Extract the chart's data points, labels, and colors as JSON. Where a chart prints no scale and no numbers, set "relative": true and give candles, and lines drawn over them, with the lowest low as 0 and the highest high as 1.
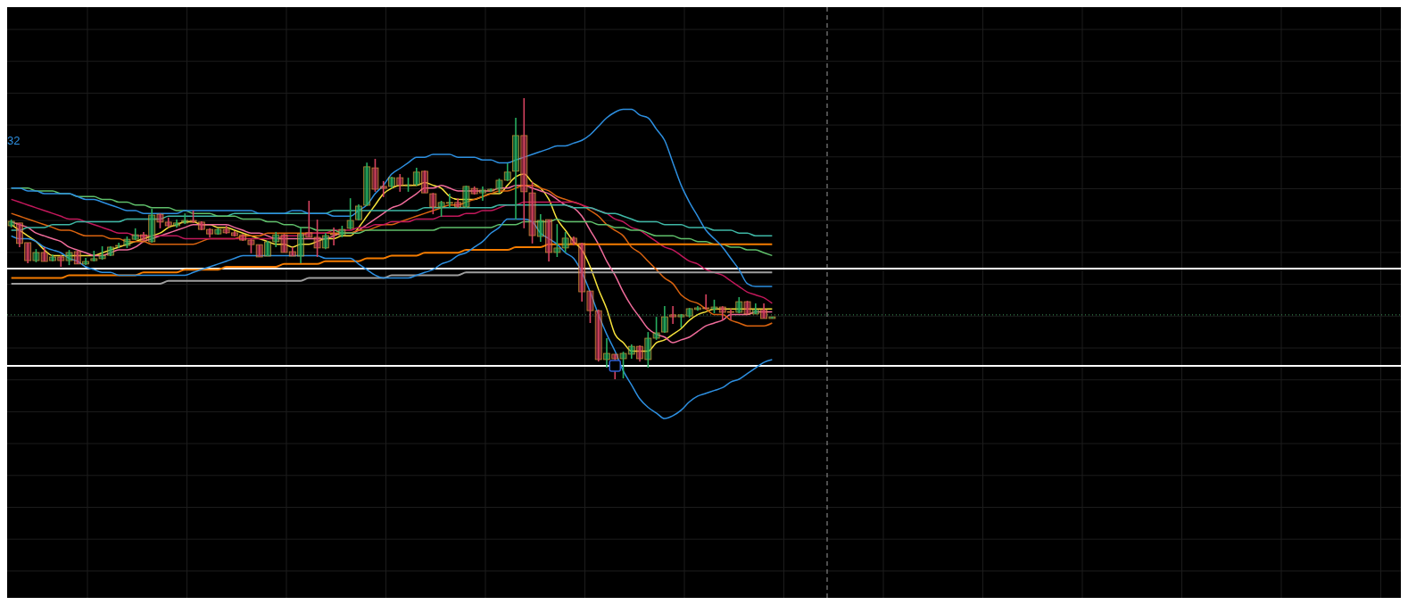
{
  "chart_data": {
    "type": "candlestick",
    "relative": true,
    "grid": true,
    "categories": [
      null,
      null,
      null,
      null,
      null,
      null,
      null,
      null,
      null,
      null,
      null,
      null,
      null,
      null,
      null,
      null,
      null,
      null,
      null,
      null,
      null,
      null,
      null,
      null,
      null,
      null,
      null,
      null,
      null,
      null,
      null,
      null,
      null,
      null,
      null,
      null,
      null,
      null,
      null,
      null,
      null,
      null,
      null,
      null,
      null,
      null,
      null,
      null,
      null,
      null,
      null,
      null,
      null,
      null,
      null,
      null,
      null,
      null,
      null,
      null,
      null,
      null,
      null,
      null,
      null,
      null,
      null,
      null,
      null,
      null,
      null,
      null,
      null,
      null,
      null,
      null,
      null,
      null,
      null,
      null,
      null,
      null,
      null,
      null,
      null,
      null,
      null,
      null,
      null,
      null,
      null,
      null,
      null
    ],
    "ohlc": [
      [
        0.546,
        0.568,
        0.54,
        0.562
      ],
      [
        0.556,
        0.556,
        0.47,
        0.483
      ],
      [
        0.486,
        0.486,
        0.413,
        0.422
      ],
      [
        0.422,
        0.463,
        0.416,
        0.451
      ],
      [
        0.451,
        0.47,
        0.419,
        0.419
      ],
      [
        0.422,
        0.444,
        0.419,
        0.435
      ],
      [
        0.435,
        0.441,
        0.4,
        0.422
      ],
      [
        0.422,
        0.46,
        0.406,
        0.451
      ],
      [
        0.454,
        0.457,
        0.41,
        0.41
      ],
      [
        0.41,
        0.432,
        0.406,
        0.419
      ],
      [
        0.422,
        0.457,
        0.419,
        0.429
      ],
      [
        0.429,
        0.473,
        0.425,
        0.441
      ],
      [
        0.441,
        0.473,
        0.438,
        0.47
      ],
      [
        0.476,
        0.486,
        0.467,
        0.476
      ],
      [
        0.476,
        0.508,
        0.467,
        0.498
      ],
      [
        0.498,
        0.537,
        0.495,
        0.514
      ],
      [
        0.514,
        0.524,
        0.492,
        0.492
      ],
      [
        0.489,
        0.606,
        0.486,
        0.584
      ],
      [
        0.587,
        0.59,
        0.537,
        0.559
      ],
      [
        0.559,
        0.575,
        0.54,
        0.546
      ],
      [
        0.546,
        0.568,
        0.54,
        0.556
      ],
      [
        0.556,
        0.59,
        0.552,
        0.565
      ],
      [
        0.565,
        0.6,
        0.556,
        0.559
      ],
      [
        0.559,
        0.562,
        0.53,
        0.533
      ],
      [
        0.533,
        0.537,
        0.505,
        0.517
      ],
      [
        0.517,
        0.537,
        0.514,
        0.533
      ],
      [
        0.533,
        0.546,
        0.517,
        0.521
      ],
      [
        0.521,
        0.527,
        0.508,
        0.511
      ],
      [
        0.514,
        0.517,
        0.492,
        0.495
      ],
      [
        0.495,
        0.498,
        0.448,
        0.479
      ],
      [
        0.479,
        0.479,
        0.435,
        0.435
      ],
      [
        0.438,
        0.492,
        0.438,
        0.489
      ],
      [
        0.489,
        0.524,
        0.47,
        0.514
      ],
      [
        0.514,
        0.517,
        0.451,
        0.451
      ],
      [
        0.454,
        0.47,
        0.438,
        0.438
      ],
      [
        0.438,
        0.54,
        0.413,
        0.517
      ],
      [
        0.521,
        0.635,
        0.505,
        0.505
      ],
      [
        0.505,
        0.568,
        0.435,
        0.467
      ],
      [
        0.467,
        0.521,
        0.463,
        0.511
      ],
      [
        0.517,
        0.54,
        0.476,
        0.514
      ],
      [
        0.511,
        0.546,
        0.505,
        0.533
      ],
      [
        0.537,
        0.644,
        0.533,
        0.565
      ],
      [
        0.568,
        0.622,
        0.565,
        0.616
      ],
      [
        0.619,
        0.771,
        0.616,
        0.756
      ],
      [
        0.752,
        0.784,
        0.667,
        0.676
      ],
      [
        0.686,
        0.705,
        0.648,
        0.679
      ],
      [
        0.686,
        0.721,
        0.679,
        0.717
      ],
      [
        0.717,
        0.73,
        0.667,
        0.689
      ],
      [
        0.692,
        0.717,
        0.667,
        0.692
      ],
      [
        0.692,
        0.752,
        0.689,
        0.737
      ],
      [
        0.74,
        0.743,
        0.663,
        0.663
      ],
      [
        0.66,
        0.663,
        0.587,
        0.613
      ],
      [
        0.613,
        0.635,
        0.578,
        0.629
      ],
      [
        0.629,
        0.66,
        0.61,
        0.629
      ],
      [
        0.629,
        0.644,
        0.61,
        0.613
      ],
      [
        0.613,
        0.689,
        0.61,
        0.686
      ],
      [
        0.679,
        0.686,
        0.657,
        0.66
      ],
      [
        0.663,
        0.686,
        0.635,
        0.673
      ],
      [
        0.67,
        0.679,
        0.667,
        0.676
      ],
      [
        0.676,
        0.714,
        0.663,
        0.708
      ],
      [
        0.708,
        0.768,
        0.705,
        0.737
      ],
      [
        0.74,
        0.93,
        0.568,
        0.867
      ],
      [
        0.867,
        1,
        0.537,
        0.667
      ],
      [
        0.663,
        0.702,
        0.483,
        0.511
      ],
      [
        0.508,
        0.587,
        0.489,
        0.565
      ],
      [
        0.568,
        0.568,
        0.419,
        0.451
      ],
      [
        0.451,
        0.552,
        0.435,
        0.467
      ],
      [
        0.467,
        0.524,
        0.451,
        0.502
      ],
      [
        0.502,
        0.508,
        0.476,
        0.483
      ],
      [
        0.483,
        0.486,
        0.276,
        0.311
      ],
      [
        0.314,
        0.314,
        0.2,
        0.244
      ],
      [
        0.244,
        0.248,
        0.063,
        0.07
      ],
      [
        0.07,
        0.146,
        0.041,
        0.092
      ],
      [
        0.089,
        0.089,
        0,
        0.073
      ],
      [
        0.073,
        0.098,
        0.003,
        0.092
      ],
      [
        0.089,
        0.124,
        0.073,
        0.117
      ],
      [
        0.117,
        0.121,
        0.063,
        0.073
      ],
      [
        0.07,
        0.168,
        0.041,
        0.146
      ],
      [
        0.146,
        0.222,
        0.14,
        0.165
      ],
      [
        0.168,
        0.26,
        0.165,
        0.222
      ],
      [
        0.229,
        0.26,
        0.197,
        0.222
      ],
      [
        0.222,
        0.232,
        0.184,
        0.229
      ],
      [
        0.225,
        0.254,
        0.219,
        0.251
      ],
      [
        0.248,
        0.26,
        0.244,
        0.254
      ],
      [
        0.254,
        0.302,
        0.248,
        0.251
      ],
      [
        0.248,
        0.283,
        0.235,
        0.257
      ],
      [
        0.257,
        0.26,
        0.21,
        0.238
      ],
      [
        0.241,
        0.251,
        0.21,
        0.238
      ],
      [
        0.238,
        0.292,
        0.235,
        0.276
      ],
      [
        0.276,
        0.279,
        0.232,
        0.232
      ],
      [
        0.232,
        0.27,
        0.232,
        0.248
      ],
      [
        0.248,
        0.27,
        0.216,
        0.216
      ],
      [
        0.216,
        0.222,
        0.216,
        0.222
      ]
    ],
    "series": [
      {
        "type": "line",
        "color": "#f5e13b",
        "values": [
          0.55,
          0.53,
          0.51,
          0.49,
          0.46,
          0.44,
          0.44,
          0.44,
          0.44,
          0.44,
          0.44,
          0.45,
          0.46,
          0.47,
          0.48,
          0.49,
          0.5,
          0.51,
          0.52,
          0.54,
          0.55,
          0.56,
          0.56,
          0.55,
          0.55,
          0.54,
          0.54,
          0.53,
          0.52,
          0.51,
          0.5,
          0.49,
          0.48,
          0.48,
          0.47,
          0.48,
          0.48,
          0.49,
          0.5,
          0.5,
          0.51,
          0.51,
          0.54,
          0.58,
          0.62,
          0.66,
          0.68,
          0.69,
          0.69,
          0.69,
          0.7,
          0.69,
          0.68,
          0.65,
          0.64,
          0.64,
          0.64,
          0.65,
          0.66,
          0.66,
          0.69,
          0.72,
          0.73,
          0.7,
          0.68,
          0.64,
          0.57,
          0.53,
          0.49,
          0.46,
          0.4,
          0.32,
          0.25,
          0.16,
          0.13,
          0.1,
          0.1,
          0.1,
          0.13,
          0.14,
          0.16,
          0.18,
          0.21,
          0.23,
          0.24,
          0.25,
          0.25,
          0.25,
          0.25,
          0.25,
          0.25,
          0.25,
          0.25
        ]
      },
      {
        "type": "line",
        "color": "#f06c9b",
        "values": [
          0.56,
          0.55,
          0.54,
          0.52,
          0.51,
          0.5,
          0.49,
          0.47,
          0.46,
          0.45,
          0.44,
          0.44,
          0.45,
          0.46,
          0.46,
          0.47,
          0.49,
          0.5,
          0.51,
          0.52,
          0.53,
          0.54,
          0.55,
          0.55,
          0.55,
          0.55,
          0.55,
          0.54,
          0.53,
          0.52,
          0.52,
          0.51,
          0.5,
          0.5,
          0.5,
          0.5,
          0.5,
          0.5,
          0.5,
          0.51,
          0.52,
          0.52,
          0.53,
          0.55,
          0.57,
          0.59,
          0.61,
          0.62,
          0.64,
          0.66,
          0.68,
          0.68,
          0.69,
          0.68,
          0.67,
          0.67,
          0.67,
          0.67,
          0.67,
          0.68,
          0.68,
          0.69,
          0.69,
          0.68,
          0.67,
          0.66,
          0.64,
          0.62,
          0.61,
          0.58,
          0.53,
          0.48,
          0.42,
          0.37,
          0.31,
          0.26,
          0.22,
          0.18,
          0.16,
          0.15,
          0.13,
          0.14,
          0.15,
          0.17,
          0.19,
          0.2,
          0.21,
          0.23,
          0.23,
          0.23,
          0.24,
          0.24,
          0.24
        ]
      },
      {
        "type": "line",
        "color": "#d9630f",
        "values": [
          0.59,
          0.58,
          0.57,
          0.56,
          0.55,
          0.54,
          0.53,
          0.53,
          0.52,
          0.51,
          0.51,
          0.51,
          0.5,
          0.5,
          0.49,
          0.49,
          0.49,
          0.48,
          0.48,
          0.48,
          0.48,
          0.48,
          0.48,
          0.49,
          0.5,
          0.5,
          0.5,
          0.5,
          0.51,
          0.51,
          0.51,
          0.52,
          0.52,
          0.52,
          0.52,
          0.52,
          0.52,
          0.52,
          0.52,
          0.52,
          0.52,
          0.52,
          0.53,
          0.53,
          0.54,
          0.55,
          0.55,
          0.56,
          0.57,
          0.58,
          0.59,
          0.6,
          0.61,
          0.62,
          0.62,
          0.63,
          0.64,
          0.65,
          0.66,
          0.67,
          0.67,
          0.68,
          0.69,
          0.69,
          0.68,
          0.67,
          0.65,
          0.64,
          0.63,
          0.62,
          0.6,
          0.58,
          0.55,
          0.53,
          0.51,
          0.47,
          0.45,
          0.42,
          0.39,
          0.36,
          0.34,
          0.3,
          0.28,
          0.27,
          0.25,
          0.23,
          0.23,
          0.21,
          0.2,
          0.19,
          0.19,
          0.19,
          0.2
        ]
      },
      {
        "type": "line",
        "color": "#c2185b",
        "values": [
          0.64,
          0.63,
          0.62,
          0.61,
          0.6,
          0.59,
          0.58,
          0.57,
          0.57,
          0.56,
          0.55,
          0.54,
          0.53,
          0.52,
          0.52,
          0.51,
          0.51,
          0.51,
          0.51,
          0.51,
          0.51,
          0.5,
          0.5,
          0.5,
          0.5,
          0.5,
          0.5,
          0.5,
          0.5,
          0.5,
          0.5,
          0.5,
          0.5,
          0.51,
          0.51,
          0.51,
          0.52,
          0.52,
          0.52,
          0.53,
          0.53,
          0.53,
          0.54,
          0.54,
          0.55,
          0.55,
          0.56,
          0.56,
          0.56,
          0.57,
          0.57,
          0.57,
          0.58,
          0.58,
          0.58,
          0.59,
          0.59,
          0.6,
          0.6,
          0.61,
          0.62,
          0.62,
          0.63,
          0.63,
          0.63,
          0.63,
          0.63,
          0.63,
          0.63,
          0.62,
          0.61,
          0.6,
          0.59,
          0.57,
          0.56,
          0.54,
          0.53,
          0.51,
          0.49,
          0.47,
          0.46,
          0.44,
          0.42,
          0.41,
          0.39,
          0.38,
          0.37,
          0.35,
          0.33,
          0.31,
          0.3,
          0.29,
          0.27
        ]
      },
      {
        "type": "line",
        "color": "#3fb8a6",
        "values": [
          0.53,
          0.53,
          0.54,
          0.54,
          0.54,
          0.55,
          0.55,
          0.55,
          0.56,
          0.56,
          0.56,
          0.56,
          0.56,
          0.56,
          0.57,
          0.57,
          0.57,
          0.57,
          0.57,
          0.58,
          0.58,
          0.58,
          0.58,
          0.58,
          0.58,
          0.58,
          0.58,
          0.59,
          0.59,
          0.59,
          0.59,
          0.59,
          0.59,
          0.59,
          0.59,
          0.59,
          0.59,
          0.59,
          0.59,
          0.6,
          0.6,
          0.6,
          0.6,
          0.6,
          0.6,
          0.6,
          0.6,
          0.6,
          0.6,
          0.6,
          0.61,
          0.61,
          0.61,
          0.61,
          0.61,
          0.61,
          0.61,
          0.61,
          0.61,
          0.62,
          0.62,
          0.62,
          0.62,
          0.62,
          0.62,
          0.62,
          0.62,
          0.62,
          0.61,
          0.61,
          0.61,
          0.6,
          0.59,
          0.59,
          0.58,
          0.57,
          0.56,
          0.56,
          0.56,
          0.55,
          0.55,
          0.55,
          0.54,
          0.54,
          0.54,
          0.53,
          0.53,
          0.53,
          0.52,
          0.52,
          0.51,
          0.51,
          0.51
        ]
      },
      {
        "type": "line",
        "color": "#5fbf6a",
        "values": [
          0.68,
          0.68,
          0.68,
          0.67,
          0.67,
          0.67,
          0.66,
          0.66,
          0.65,
          0.65,
          0.65,
          0.64,
          0.64,
          0.63,
          0.63,
          0.62,
          0.62,
          0.61,
          0.61,
          0.61,
          0.6,
          0.6,
          0.59,
          0.59,
          0.59,
          0.58,
          0.58,
          0.58,
          0.57,
          0.57,
          0.57,
          0.56,
          0.56,
          0.55,
          0.55,
          0.54,
          0.54,
          0.53,
          0.53,
          0.53,
          0.52,
          0.52,
          0.52,
          0.53,
          0.53,
          0.53,
          0.53,
          0.53,
          0.53,
          0.53,
          0.53,
          0.53,
          0.54,
          0.54,
          0.54,
          0.54,
          0.54,
          0.54,
          0.54,
          0.55,
          0.55,
          0.55,
          0.56,
          0.56,
          0.56,
          0.56,
          0.57,
          0.56,
          0.56,
          0.56,
          0.56,
          0.55,
          0.55,
          0.54,
          0.54,
          0.53,
          0.53,
          0.52,
          0.51,
          0.51,
          0.51,
          0.5,
          0.5,
          0.49,
          0.49,
          0.48,
          0.48,
          0.47,
          0.47,
          0.46,
          0.46,
          0.45,
          0.44
        ]
      },
      {
        "type": "line",
        "color": "#f57c00",
        "values": [
          0.36,
          0.36,
          0.36,
          0.36,
          0.36,
          0.36,
          0.36,
          0.37,
          0.37,
          0.37,
          0.37,
          0.37,
          0.37,
          0.37,
          0.37,
          0.37,
          0.38,
          0.38,
          0.38,
          0.38,
          0.38,
          0.39,
          0.39,
          0.39,
          0.39,
          0.39,
          0.4,
          0.4,
          0.4,
          0.4,
          0.4,
          0.4,
          0.4,
          0.41,
          0.41,
          0.41,
          0.41,
          0.41,
          0.42,
          0.42,
          0.42,
          0.42,
          0.42,
          0.43,
          0.43,
          0.43,
          0.44,
          0.44,
          0.44,
          0.44,
          0.45,
          0.45,
          0.45,
          0.45,
          0.45,
          0.46,
          0.46,
          0.46,
          0.46,
          0.46,
          0.46,
          0.47,
          0.47,
          0.47,
          0.47,
          0.48,
          0.48,
          0.48,
          0.48,
          0.48,
          0.48,
          0.48,
          0.48,
          0.48,
          0.48,
          0.48,
          0.48,
          0.48,
          0.48,
          0.48,
          0.48,
          0.48,
          0.48,
          0.48,
          0.48,
          0.48,
          0.48,
          0.48,
          0.48,
          0.48,
          0.48,
          0.48,
          0.48
        ]
      },
      {
        "type": "line",
        "color": "#9e9e9e",
        "values": [
          0.34,
          0.34,
          0.34,
          0.34,
          0.34,
          0.34,
          0.34,
          0.34,
          0.34,
          0.34,
          0.34,
          0.34,
          0.34,
          0.34,
          0.34,
          0.34,
          0.34,
          0.34,
          0.34,
          0.35,
          0.35,
          0.35,
          0.35,
          0.35,
          0.35,
          0.35,
          0.35,
          0.35,
          0.35,
          0.35,
          0.35,
          0.35,
          0.35,
          0.35,
          0.35,
          0.35,
          0.36,
          0.36,
          0.36,
          0.36,
          0.36,
          0.36,
          0.36,
          0.36,
          0.36,
          0.36,
          0.37,
          0.37,
          0.37,
          0.37,
          0.37,
          0.37,
          0.37,
          0.37,
          0.37,
          0.38,
          0.38,
          0.38,
          0.38,
          0.38,
          0.38,
          0.38,
          0.38,
          0.38,
          0.38,
          0.38,
          0.38,
          0.38,
          0.38,
          0.38,
          0.38,
          0.38,
          0.38,
          0.38,
          0.38,
          0.38,
          0.38,
          0.38,
          0.38,
          0.38,
          0.38,
          0.38,
          0.38,
          0.38,
          0.38,
          0.38,
          0.38,
          0.38,
          0.38,
          0.38,
          0.38,
          0.38,
          0.38
        ]
      },
      {
        "type": "line",
        "color": "#2d8fe0",
        "values": [
          0.68,
          0.68,
          0.67,
          0.67,
          0.66,
          0.66,
          0.66,
          0.66,
          0.65,
          0.64,
          0.64,
          0.63,
          0.62,
          0.61,
          0.6,
          0.6,
          0.59,
          0.59,
          0.59,
          0.59,
          0.59,
          0.6,
          0.6,
          0.6,
          0.6,
          0.6,
          0.6,
          0.6,
          0.6,
          0.6,
          0.59,
          0.59,
          0.59,
          0.59,
          0.6,
          0.6,
          0.59,
          0.59,
          0.59,
          0.58,
          0.58,
          0.58,
          0.6,
          0.62,
          0.66,
          0.69,
          0.73,
          0.75,
          0.77,
          0.79,
          0.79,
          0.8,
          0.8,
          0.8,
          0.79,
          0.79,
          0.79,
          0.78,
          0.78,
          0.77,
          0.77,
          0.78,
          0.79,
          0.8,
          0.81,
          0.82,
          0.83,
          0.83,
          0.84,
          0.85,
          0.87,
          0.9,
          0.93,
          0.95,
          0.96,
          0.96,
          0.94,
          0.93,
          0.89,
          0.85,
          0.77,
          0.69,
          0.63,
          0.58,
          0.53,
          0.5,
          0.47,
          0.43,
          0.39,
          0.34,
          0.33,
          0.33,
          0.33
        ]
      },
      {
        "type": "line",
        "color": "#2d8fe0",
        "values": [
          0.51,
          0.5,
          0.5,
          0.49,
          0.47,
          0.46,
          0.45,
          0.43,
          0.42,
          0.4,
          0.39,
          0.38,
          0.38,
          0.37,
          0.37,
          0.37,
          0.37,
          0.37,
          0.37,
          0.37,
          0.37,
          0.37,
          0.38,
          0.39,
          0.4,
          0.41,
          0.42,
          0.43,
          0.44,
          0.44,
          0.44,
          0.44,
          0.44,
          0.44,
          0.44,
          0.44,
          0.44,
          0.44,
          0.43,
          0.43,
          0.43,
          0.43,
          0.41,
          0.39,
          0.37,
          0.36,
          0.36,
          0.36,
          0.36,
          0.37,
          0.38,
          0.39,
          0.41,
          0.42,
          0.44,
          0.45,
          0.47,
          0.49,
          0.52,
          0.54,
          0.57,
          0.57,
          0.57,
          0.56,
          0.52,
          0.5,
          0.48,
          0.45,
          0.43,
          0.38,
          0.31,
          0.23,
          0.16,
          0.1,
          0.03,
          -0.02,
          -0.07,
          -0.1,
          -0.12,
          -0.14,
          -0.13,
          -0.11,
          -0.08,
          -0.06,
          -0.05,
          -0.04,
          -0.03,
          -0.01,
          0,
          0.02,
          0.04,
          0.06,
          0.07
        ]
      }
    ],
    "ref_lines": [
      {
        "axis": "y",
        "value": 0.394,
        "color": "#ffffff"
      },
      {
        "axis": "y",
        "value": 0.048,
        "color": "#ffffff"
      },
      {
        "axis": "y",
        "value": 0.229,
        "color": "#3f9a5c",
        "line_style": "dotted"
      }
    ],
    "annotations": [
      "32"
    ]
  }
}
